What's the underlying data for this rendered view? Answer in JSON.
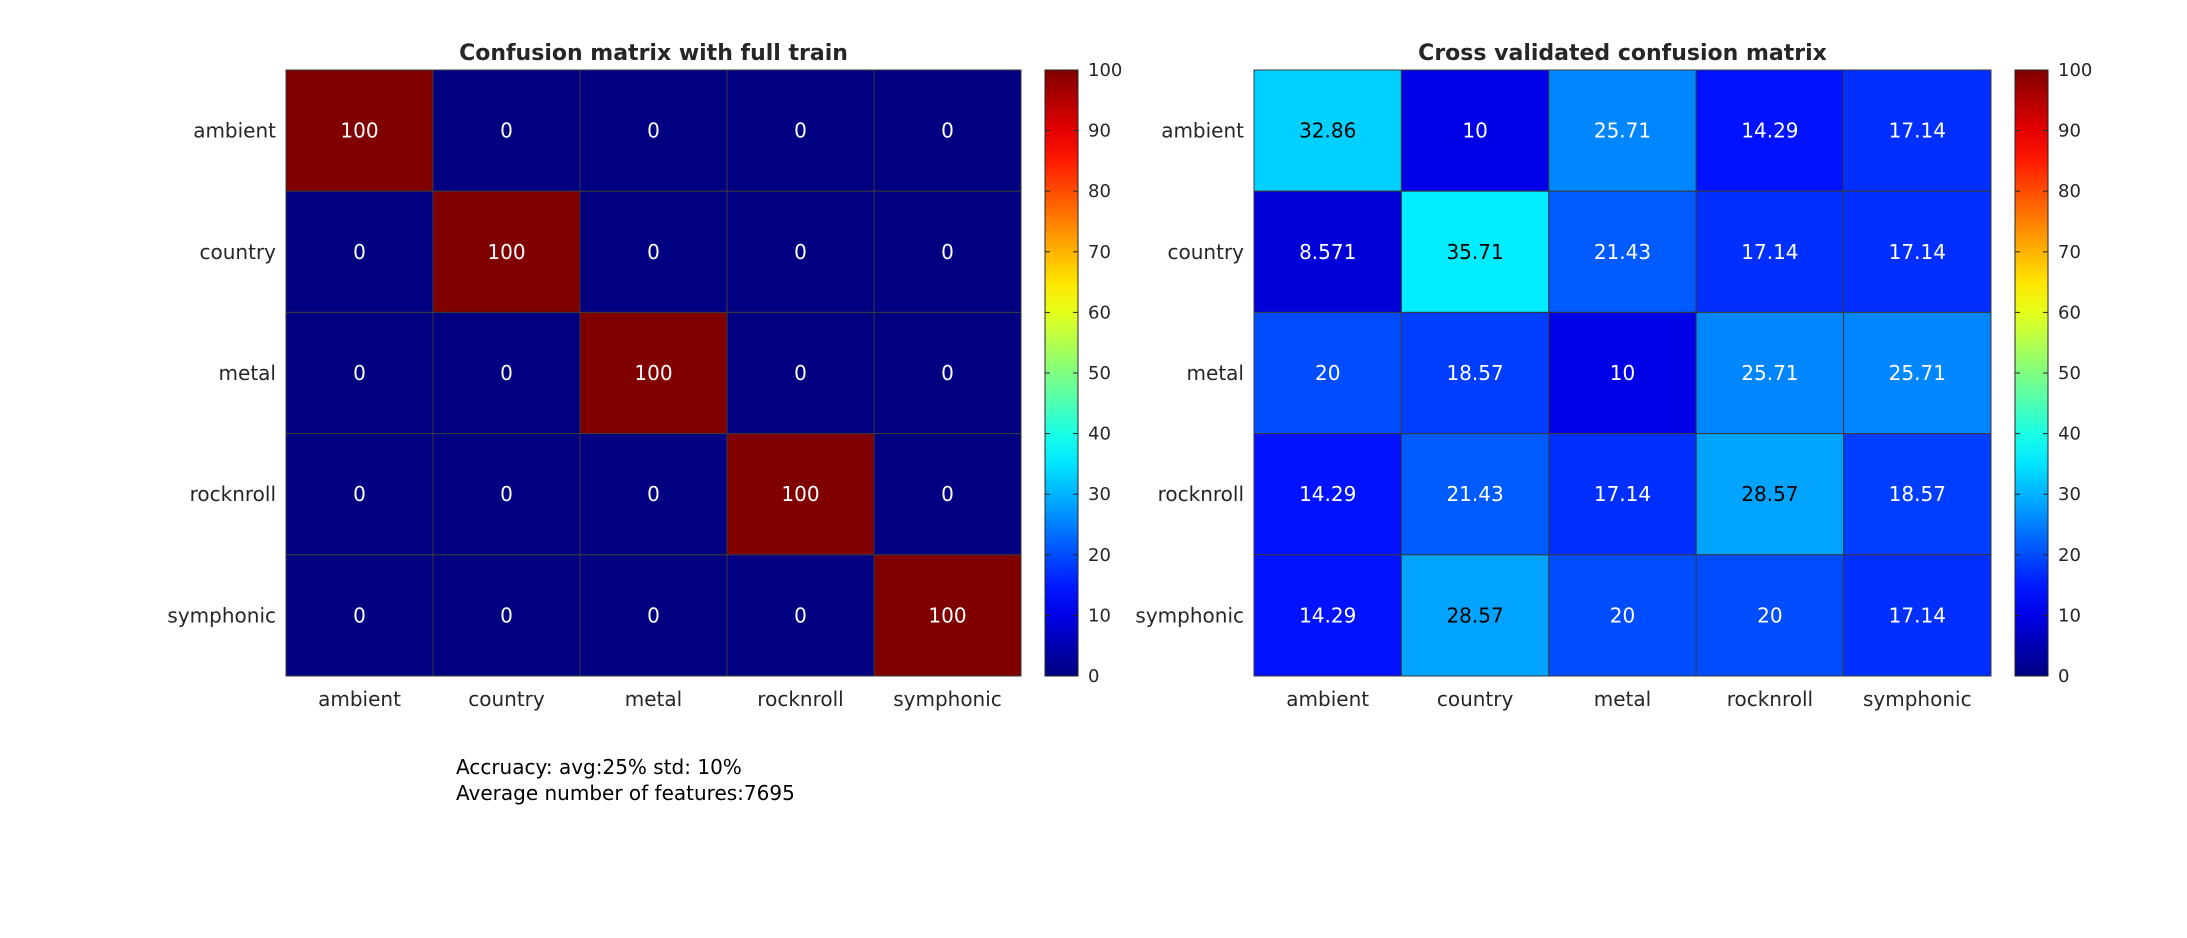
{
  "figure": {
    "note_lines": [
      "Accruacy: avg:25% std: 10%",
      "Average number of features:7695"
    ]
  },
  "chart_data": [
    {
      "type": "heatmap",
      "title": "Confusion matrix with full train",
      "rows": [
        "ambient",
        "country",
        "metal",
        "rocknroll",
        "symphonic"
      ],
      "cols": [
        "ambient",
        "country",
        "metal",
        "rocknroll",
        "symphonic"
      ],
      "values": [
        [
          100,
          0,
          0,
          0,
          0
        ],
        [
          0,
          100,
          0,
          0,
          0
        ],
        [
          0,
          0,
          100,
          0,
          0
        ],
        [
          0,
          0,
          0,
          100,
          0
        ],
        [
          0,
          0,
          0,
          0,
          100
        ]
      ],
      "labels": [
        [
          "100",
          "0",
          "0",
          "0",
          "0"
        ],
        [
          "0",
          "100",
          "0",
          "0",
          "0"
        ],
        [
          "0",
          "0",
          "100",
          "0",
          "0"
        ],
        [
          "0",
          "0",
          "0",
          "100",
          "0"
        ],
        [
          "0",
          "0",
          "0",
          "0",
          "100"
        ]
      ],
      "colormap": "jet",
      "clim": [
        0,
        100
      ],
      "colorbar_ticks": [
        "0",
        "10",
        "20",
        "30",
        "40",
        "50",
        "60",
        "70",
        "80",
        "90",
        "100"
      ]
    },
    {
      "type": "heatmap",
      "title": "Cross validated confusion matrix",
      "rows": [
        "ambient",
        "country",
        "metal",
        "rocknroll",
        "symphonic"
      ],
      "cols": [
        "ambient",
        "country",
        "metal",
        "rocknroll",
        "symphonic"
      ],
      "values": [
        [
          32.86,
          10,
          25.71,
          14.29,
          17.14
        ],
        [
          8.571,
          35.71,
          21.43,
          17.14,
          17.14
        ],
        [
          20,
          18.57,
          10,
          25.71,
          25.71
        ],
        [
          14.29,
          21.43,
          17.14,
          28.57,
          18.57
        ],
        [
          14.29,
          28.57,
          20,
          20,
          17.14
        ]
      ],
      "labels": [
        [
          "32.86",
          "10",
          "25.71",
          "14.29",
          "17.14"
        ],
        [
          "8.571",
          "35.71",
          "21.43",
          "17.14",
          "17.14"
        ],
        [
          "20",
          "18.57",
          "10",
          "25.71",
          "25.71"
        ],
        [
          "14.29",
          "21.43",
          "17.14",
          "28.57",
          "18.57"
        ],
        [
          "14.29",
          "28.57",
          "20",
          "20",
          "17.14"
        ]
      ],
      "colormap": "jet",
      "clim": [
        0,
        100
      ],
      "colorbar_ticks": [
        "0",
        "10",
        "20",
        "30",
        "40",
        "50",
        "60",
        "70",
        "80",
        "90",
        "100"
      ]
    }
  ]
}
